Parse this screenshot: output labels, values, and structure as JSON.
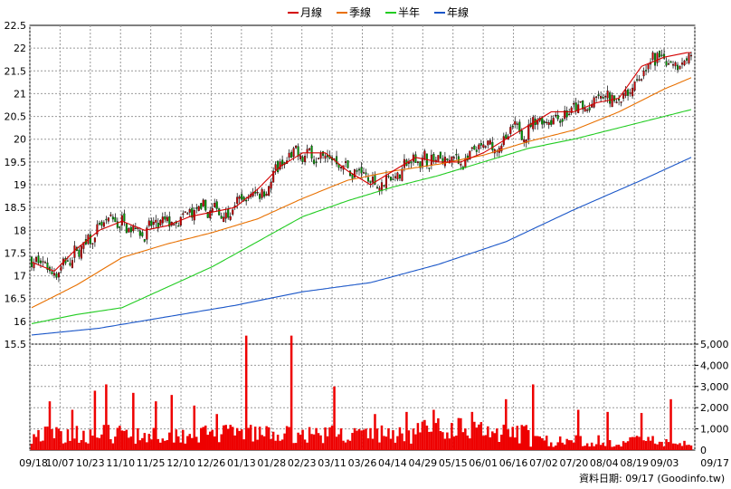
{
  "chart_data": {
    "type": "candlestick",
    "legend": [
      {
        "label": "月線",
        "color": "#d40000"
      },
      {
        "label": "季線",
        "color": "#e87000"
      },
      {
        "label": "半年",
        "color": "#22cc22"
      },
      {
        "label": "年線",
        "color": "#1a56c8"
      }
    ],
    "price_axis": {
      "min": 15.5,
      "max": 22.5,
      "ticks": [
        "15.5",
        "16",
        "16.5",
        "17",
        "17.5",
        "18",
        "18.5",
        "19",
        "19.5",
        "20",
        "20.5",
        "21",
        "21.5",
        "22",
        "22.5"
      ]
    },
    "volume_axis": {
      "min": 0,
      "max": 5000,
      "ticks": [
        "1,000",
        "2,000",
        "3,000",
        "4,000",
        "5,000"
      ]
    },
    "x_labels": [
      "09/18",
      "10/07",
      "10/23",
      "11/10",
      "11/25",
      "12/10",
      "12/26",
      "01/13",
      "01/28",
      "02/23",
      "03/11",
      "03/26",
      "04/14",
      "04/29",
      "05/15",
      "06/01",
      "06/16",
      "07/02",
      "07/20",
      "08/04",
      "08/19",
      "09/03",
      "09/17"
    ],
    "footer": "資料日期: 09/17  (Goodinfo.tw)",
    "colors": {
      "up": "#cc0000",
      "down": "#009900",
      "volume": "#ee0000",
      "grid": "#999999"
    },
    "ma_points": {
      "month": [
        [
          0,
          17.3
        ],
        [
          10,
          17.1
        ],
        [
          20,
          17.6
        ],
        [
          30,
          18.0
        ],
        [
          40,
          18.2
        ],
        [
          50,
          18.0
        ],
        [
          60,
          18.1
        ],
        [
          70,
          18.3
        ],
        [
          80,
          18.4
        ],
        [
          90,
          18.5
        ],
        [
          100,
          18.9
        ],
        [
          110,
          19.4
        ],
        [
          120,
          19.7
        ],
        [
          130,
          19.7
        ],
        [
          140,
          19.3
        ],
        [
          150,
          19.0
        ],
        [
          160,
          19.3
        ],
        [
          170,
          19.6
        ],
        [
          180,
          19.5
        ],
        [
          190,
          19.5
        ],
        [
          200,
          19.7
        ],
        [
          210,
          20.0
        ],
        [
          220,
          20.3
        ],
        [
          230,
          20.6
        ],
        [
          240,
          20.6
        ],
        [
          250,
          20.8
        ],
        [
          260,
          20.9
        ],
        [
          270,
          21.6
        ],
        [
          280,
          21.8
        ],
        [
          290,
          21.9
        ]
      ],
      "quarter": [
        [
          0,
          16.3
        ],
        [
          20,
          16.8
        ],
        [
          40,
          17.4
        ],
        [
          60,
          17.7
        ],
        [
          80,
          17.95
        ],
        [
          100,
          18.25
        ],
        [
          120,
          18.7
        ],
        [
          140,
          19.1
        ],
        [
          160,
          19.3
        ],
        [
          180,
          19.45
        ],
        [
          200,
          19.65
        ],
        [
          220,
          19.95
        ],
        [
          240,
          20.2
        ],
        [
          260,
          20.6
        ],
        [
          280,
          21.1
        ],
        [
          292,
          21.35
        ]
      ],
      "half": [
        [
          0,
          15.95
        ],
        [
          20,
          16.15
        ],
        [
          40,
          16.3
        ],
        [
          60,
          16.75
        ],
        [
          80,
          17.2
        ],
        [
          100,
          17.75
        ],
        [
          120,
          18.3
        ],
        [
          140,
          18.65
        ],
        [
          160,
          18.95
        ],
        [
          180,
          19.2
        ],
        [
          200,
          19.5
        ],
        [
          220,
          19.8
        ],
        [
          240,
          20.0
        ],
        [
          260,
          20.25
        ],
        [
          280,
          20.5
        ],
        [
          292,
          20.65
        ]
      ],
      "year": [
        [
          0,
          15.7
        ],
        [
          30,
          15.85
        ],
        [
          60,
          16.1
        ],
        [
          90,
          16.35
        ],
        [
          120,
          16.65
        ],
        [
          150,
          16.85
        ],
        [
          180,
          17.25
        ],
        [
          210,
          17.75
        ],
        [
          240,
          18.45
        ],
        [
          270,
          19.1
        ],
        [
          292,
          19.6
        ]
      ]
    }
  }
}
